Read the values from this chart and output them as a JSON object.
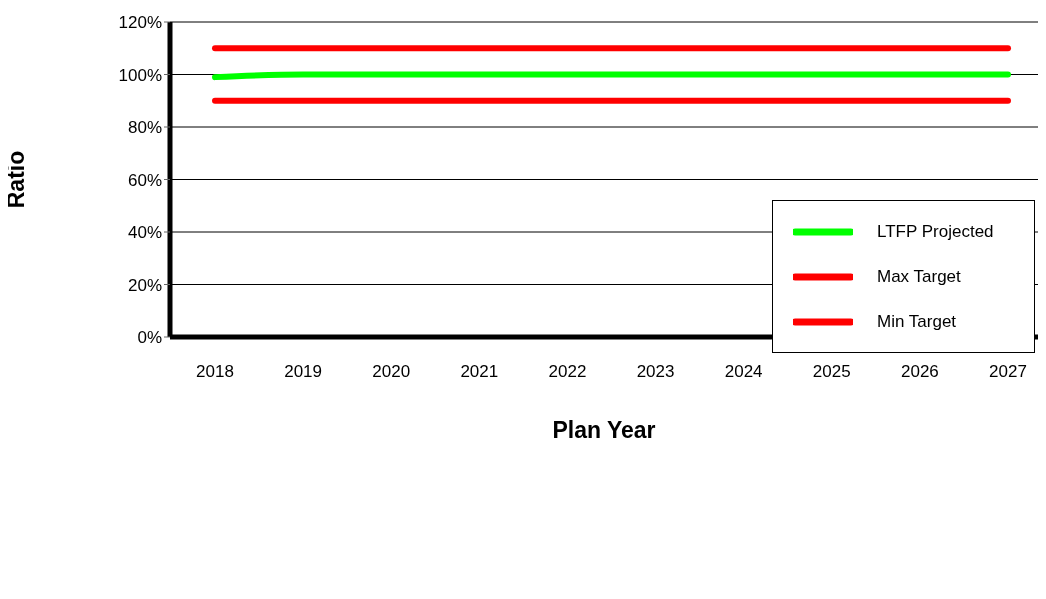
{
  "chart_data": {
    "type": "line",
    "xlabel": "Plan Year",
    "ylabel": "Ratio",
    "categories": [
      "2018",
      "2019",
      "2020",
      "2021",
      "2022",
      "2023",
      "2024",
      "2025",
      "2026",
      "2027"
    ],
    "series": [
      {
        "name": "LTFP Projected",
        "color": "#00ff00",
        "values": [
          99,
          100,
          100,
          100,
          100,
          100,
          100,
          100,
          100,
          100
        ]
      },
      {
        "name": "Max Target",
        "color": "#ff0000",
        "values": [
          110,
          110,
          110,
          110,
          110,
          110,
          110,
          110,
          110,
          110
        ]
      },
      {
        "name": "Min Target",
        "color": "#ff0000",
        "values": [
          90,
          90,
          90,
          90,
          90,
          90,
          90,
          90,
          90,
          90
        ]
      }
    ],
    "ylim": [
      0,
      120
    ],
    "yticks": [
      {
        "value": 0,
        "label": "0%"
      },
      {
        "value": 20,
        "label": "20%"
      },
      {
        "value": 40,
        "label": "40%"
      },
      {
        "value": 60,
        "label": "60%"
      },
      {
        "value": 80,
        "label": "80%"
      },
      {
        "value": 100,
        "label": "100%"
      },
      {
        "value": 120,
        "label": "120%"
      }
    ],
    "grid": "y",
    "legend": "right",
    "marker": "none",
    "line_style": "solid"
  }
}
